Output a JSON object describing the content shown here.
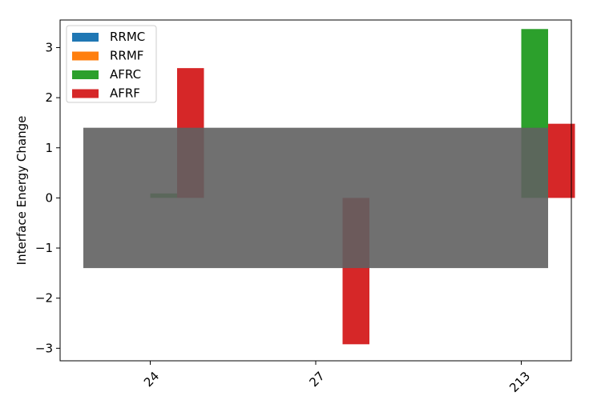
{
  "chart_data": {
    "type": "bar",
    "categories": [
      "24",
      "27",
      "213"
    ],
    "series": [
      {
        "name": "RRMC",
        "color": "#1f77b4",
        "values": [
          0,
          0,
          0
        ]
      },
      {
        "name": "RRMF",
        "color": "#ff7f0e",
        "values": [
          0,
          0,
          0
        ]
      },
      {
        "name": "AFRC",
        "color": "#2ca02c",
        "values": [
          0.09,
          0,
          3.37
        ]
      },
      {
        "name": "AFRF",
        "color": "#d62728",
        "values": [
          2.59,
          -2.92,
          1.48
        ]
      }
    ],
    "band": {
      "y_min": -1.4,
      "y_max": 1.4,
      "color": "#606060",
      "opacity": 0.9
    },
    "xlabel": "",
    "ylabel": "Interface Energy Change",
    "ylim": [
      -3.25,
      3.55
    ],
    "yticks": [
      -3,
      -2,
      -1,
      0,
      1,
      2,
      3
    ],
    "xtick_rotation": 45,
    "grid": false,
    "legend_position": "top-left"
  }
}
